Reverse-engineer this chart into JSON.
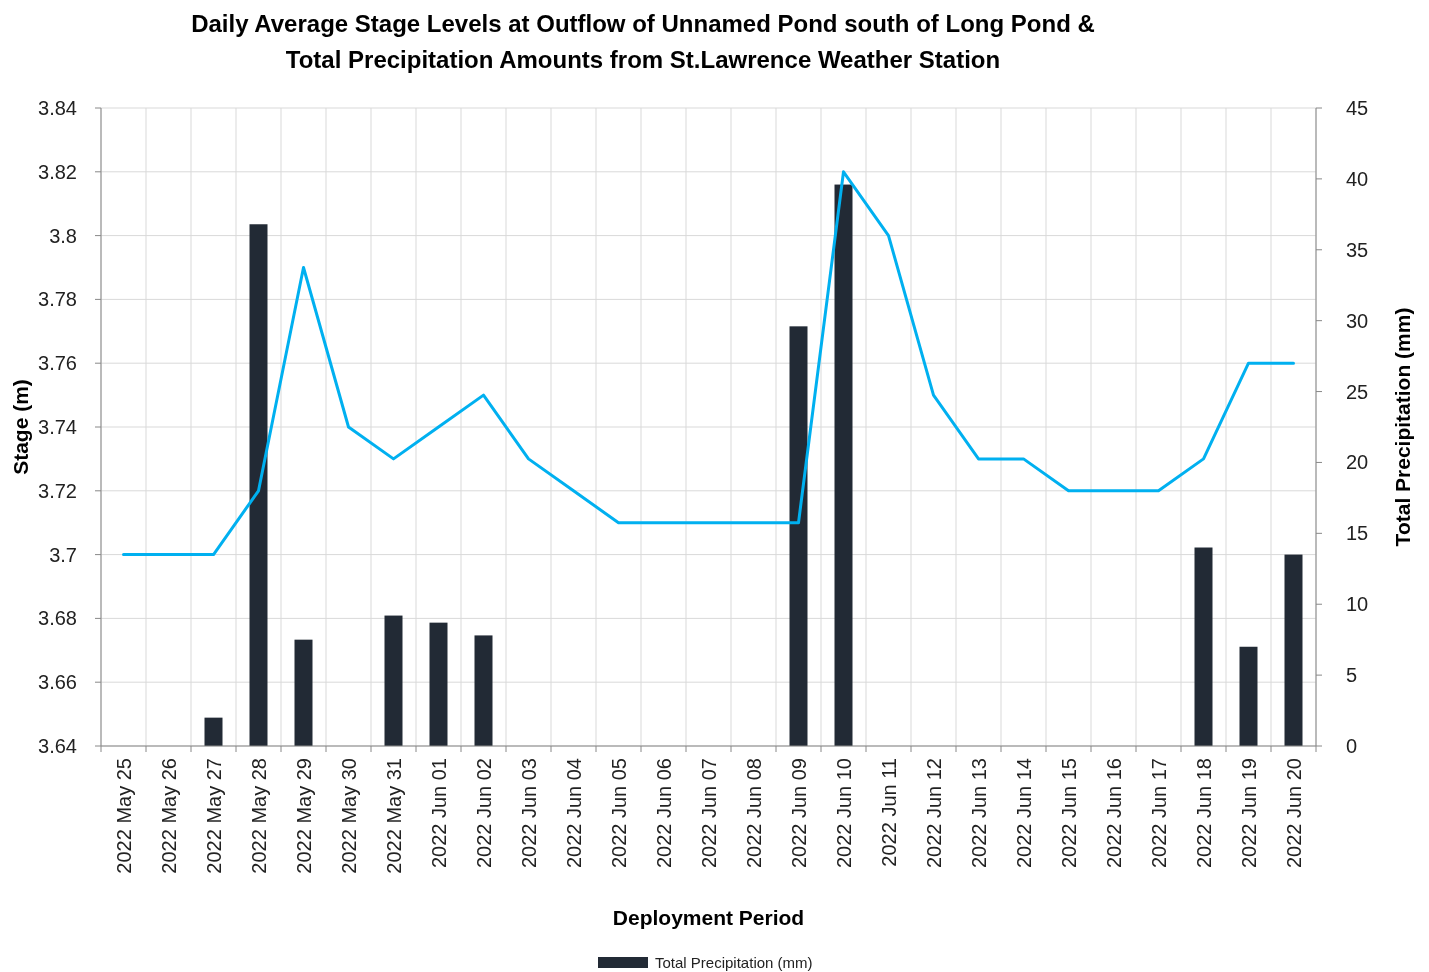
{
  "chart_data": {
    "type": "bar",
    "title": "Daily Average Stage Levels at Outflow of Unnamed Pond south of Long Pond & Total Precipitation Amounts from St.Lawrence Weather Station",
    "xlabel": "Deployment Period",
    "ylabel": "Stage (m)",
    "y2label": "Total Precipitation (mm)",
    "categories": [
      "2022 May 25",
      "2022 May 26",
      "2022 May 27",
      "2022 May 28",
      "2022 May 29",
      "2022 May 30",
      "2022 May 31",
      "2022 Jun 01",
      "2022 Jun 02",
      "2022 Jun 03",
      "2022 Jun 04",
      "2022 Jun 05",
      "2022 Jun 06",
      "2022 Jun 07",
      "2022 Jun 08",
      "2022 Jun 09",
      "2022 Jun 10",
      "2022 Jun 11",
      "2022 Jun 12",
      "2022 Jun 13",
      "2022 Jun 14",
      "2022 Jun 15",
      "2022 Jun 16",
      "2022 Jun 17",
      "2022 Jun 18",
      "2022 Jun 19",
      "2022 Jun 20"
    ],
    "series": [
      {
        "name": "Total Precipitation (mm)",
        "axis": "y2",
        "color": "#222a35",
        "values": [
          0,
          0,
          2.0,
          36.8,
          7.5,
          0,
          9.2,
          8.7,
          7.8,
          0,
          0,
          0,
          0,
          0,
          0,
          29.6,
          39.6,
          0,
          0,
          0,
          0,
          0,
          0,
          0,
          14.0,
          7.0,
          13.5
        ]
      },
      {
        "type": "line",
        "color": "#00b0f0",
        "values": [
          3.7,
          3.7,
          3.7,
          3.72,
          3.79,
          3.74,
          3.73,
          3.74,
          3.75,
          3.73,
          3.72,
          3.71,
          3.71,
          3.71,
          3.71,
          3.71,
          3.82,
          3.8,
          3.75,
          3.73,
          3.73,
          3.72,
          3.72,
          3.72,
          3.73,
          3.76,
          3.76
        ]
      }
    ],
    "ylim": [
      3.64,
      3.84
    ],
    "yticks": [
      3.64,
      3.66,
      3.68,
      3.7,
      3.72,
      3.74,
      3.76,
      3.78,
      3.8,
      3.82,
      3.84
    ],
    "y2lim": [
      0,
      45
    ],
    "y2ticks": [
      0,
      5,
      10,
      15,
      20,
      25,
      30,
      35,
      40,
      45
    ],
    "grid": true,
    "legend": "bottom",
    "line_style": "solid",
    "marker": "none"
  }
}
